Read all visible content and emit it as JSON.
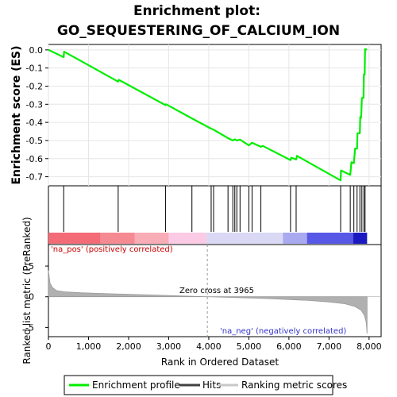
{
  "chart_data": {
    "type": "line",
    "title_line1": "Enrichment plot:",
    "title_line2": "GO_SEQUESTERING_OF_CALCIUM_ION",
    "es_panel": {
      "ylabel": "Enrichment score (ES)",
      "ylim": [
        -0.75,
        0.03
      ],
      "yticks": [
        0.0,
        -0.1,
        -0.2,
        -0.3,
        -0.4,
        -0.5,
        -0.6,
        -0.7
      ],
      "ytick_labels": [
        "0.0",
        "-0.1",
        "-0.2",
        "-0.3",
        "-0.4",
        "-0.5",
        "-0.6",
        "-0.7"
      ],
      "color": "#00ee00",
      "curve": [
        [
          0,
          0.0
        ],
        [
          380,
          -0.04
        ],
        [
          390,
          -0.01
        ],
        [
          1740,
          -0.175
        ],
        [
          1755,
          -0.165
        ],
        [
          2920,
          -0.305
        ],
        [
          2935,
          -0.3
        ],
        [
          3580,
          -0.378
        ],
        [
          4060,
          -0.435
        ],
        [
          4120,
          -0.44
        ],
        [
          4480,
          -0.487
        ],
        [
          4600,
          -0.5
        ],
        [
          4650,
          -0.493
        ],
        [
          4700,
          -0.5
        ],
        [
          4780,
          -0.495
        ],
        [
          5000,
          -0.527
        ],
        [
          5080,
          -0.512
        ],
        [
          5300,
          -0.535
        ],
        [
          5350,
          -0.53
        ],
        [
          6040,
          -0.608
        ],
        [
          6060,
          -0.595
        ],
        [
          6180,
          -0.605
        ],
        [
          6200,
          -0.585
        ],
        [
          7290,
          -0.72
        ],
        [
          7300,
          -0.665
        ],
        [
          7530,
          -0.69
        ],
        [
          7560,
          -0.62
        ],
        [
          7620,
          -0.625
        ],
        [
          7650,
          -0.545
        ],
        [
          7700,
          -0.545
        ],
        [
          7710,
          -0.46
        ],
        [
          7770,
          -0.46
        ],
        [
          7780,
          -0.37
        ],
        [
          7800,
          -0.375
        ],
        [
          7820,
          -0.265
        ],
        [
          7860,
          -0.265
        ],
        [
          7870,
          -0.135
        ],
        [
          7890,
          -0.135
        ],
        [
          7900,
          0.005
        ],
        [
          7950,
          0.0
        ]
      ]
    },
    "hits": [
      380,
      1740,
      2920,
      3580,
      4060,
      4120,
      4480,
      4600,
      4650,
      4700,
      4780,
      5000,
      5080,
      5300,
      6040,
      6180,
      7290,
      7530,
      7620,
      7700,
      7770,
      7820,
      7870,
      7900
    ],
    "color_bar": {
      "segments": [
        {
          "from": 0,
          "to": 1300,
          "color": "#f36b76"
        },
        {
          "from": 1300,
          "to": 2150,
          "color": "#f58a93"
        },
        {
          "from": 2150,
          "to": 3000,
          "color": "#f8acb5"
        },
        {
          "from": 3000,
          "to": 3950,
          "color": "#fbcae5"
        },
        {
          "from": 3950,
          "to": 5850,
          "color": "#d9d9f5"
        },
        {
          "from": 5850,
          "to": 6450,
          "color": "#a9a9f0"
        },
        {
          "from": 6450,
          "to": 7600,
          "color": "#5858e6"
        },
        {
          "from": 7600,
          "to": 7950,
          "color": "#1a1ac0"
        }
      ]
    },
    "metric_panel": {
      "ylabel": "Ranked list metric (PreRanked)",
      "ylim": [
        -6.5,
        8.5
      ],
      "yticks": [
        5,
        0,
        -5
      ],
      "ytick_labels": [
        "5",
        "0",
        "-5"
      ],
      "annot_pos": "'na_pos' (positively correlated)",
      "annot_neg": "'na_neg' (negatively correlated)",
      "zero_cross_label": "Zero cross at 3965",
      "zero_cross": 3965,
      "fill_color": "#b0b0b0",
      "profile": [
        [
          0,
          4.3
        ],
        [
          40,
          2.2
        ],
        [
          100,
          1.5
        ],
        [
          200,
          1.0
        ],
        [
          400,
          0.8
        ],
        [
          800,
          0.65
        ],
        [
          1500,
          0.5
        ],
        [
          2500,
          0.3
        ],
        [
          3500,
          0.1
        ],
        [
          3965,
          0.0
        ],
        [
          4500,
          -0.1
        ],
        [
          5500,
          -0.3
        ],
        [
          6500,
          -0.6
        ],
        [
          7000,
          -0.85
        ],
        [
          7400,
          -1.15
        ],
        [
          7650,
          -1.6
        ],
        [
          7800,
          -2.2
        ],
        [
          7880,
          -3.0
        ],
        [
          7930,
          -4.2
        ],
        [
          7950,
          -6.0
        ]
      ]
    },
    "xaxis": {
      "label": "Rank in Ordered Dataset",
      "xlim": [
        0,
        8300
      ],
      "ticks": [
        0,
        1000,
        2000,
        3000,
        4000,
        5000,
        6000,
        7000,
        8000
      ],
      "tick_labels": [
        "0",
        "1,000",
        "2,000",
        "3,000",
        "4,000",
        "5,000",
        "6,000",
        "7,000",
        "8,000"
      ]
    },
    "legend": {
      "placement": "bottom",
      "items": [
        {
          "label": "Enrichment profile",
          "color": "#00ee00"
        },
        {
          "label": "Hits",
          "color": "#404040"
        },
        {
          "label": "Ranking metric scores",
          "color": "#c8c8c8"
        }
      ]
    }
  }
}
